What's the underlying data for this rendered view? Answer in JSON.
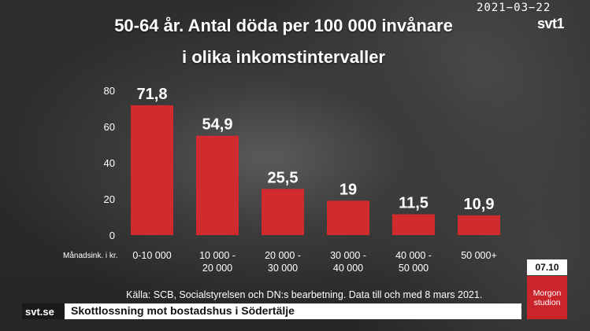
{
  "header": {
    "title_line1": "50-64 år. Antal döda per 100 000 invånare",
    "title_line2": "i olika inkomstintervaller",
    "date": "2021−03−22",
    "channel_logo": "svt1"
  },
  "chart_data": {
    "type": "bar",
    "title": "50-64 år. Antal döda per 100 000 invånare i olika inkomstintervaller",
    "xlabel": "Månadsink. i kr.",
    "ylabel": "",
    "categories": [
      [
        "0-10 000"
      ],
      [
        "10 000 -",
        "20 000"
      ],
      [
        "20 000 -",
        "30 000"
      ],
      [
        "30 000 -",
        "40 000"
      ],
      [
        "40 000 -",
        "50 000"
      ],
      [
        "50 000+"
      ]
    ],
    "values": [
      71.8,
      54.9,
      25.5,
      19,
      11.5,
      10.9
    ],
    "value_labels": [
      "71,8",
      "54,9",
      "25,5",
      "19",
      "11,5",
      "10,9"
    ],
    "yticks": [
      0,
      20,
      40,
      60,
      80
    ],
    "ylim": [
      0,
      80
    ],
    "grid": false,
    "bar_color": "#d12b2e",
    "source": "Källa: SCB, Socialstyrelsen och DN:s bearbetning. Data till och med 8 mars 2021."
  },
  "ticker": {
    "brand": "svt.se",
    "headline": "Skottlossning mot bostadshus i Södertälje"
  },
  "badges": {
    "time": "07.10",
    "show_line1": "Morgon",
    "show_line2": "studion",
    "show_color": "#c9252b"
  }
}
